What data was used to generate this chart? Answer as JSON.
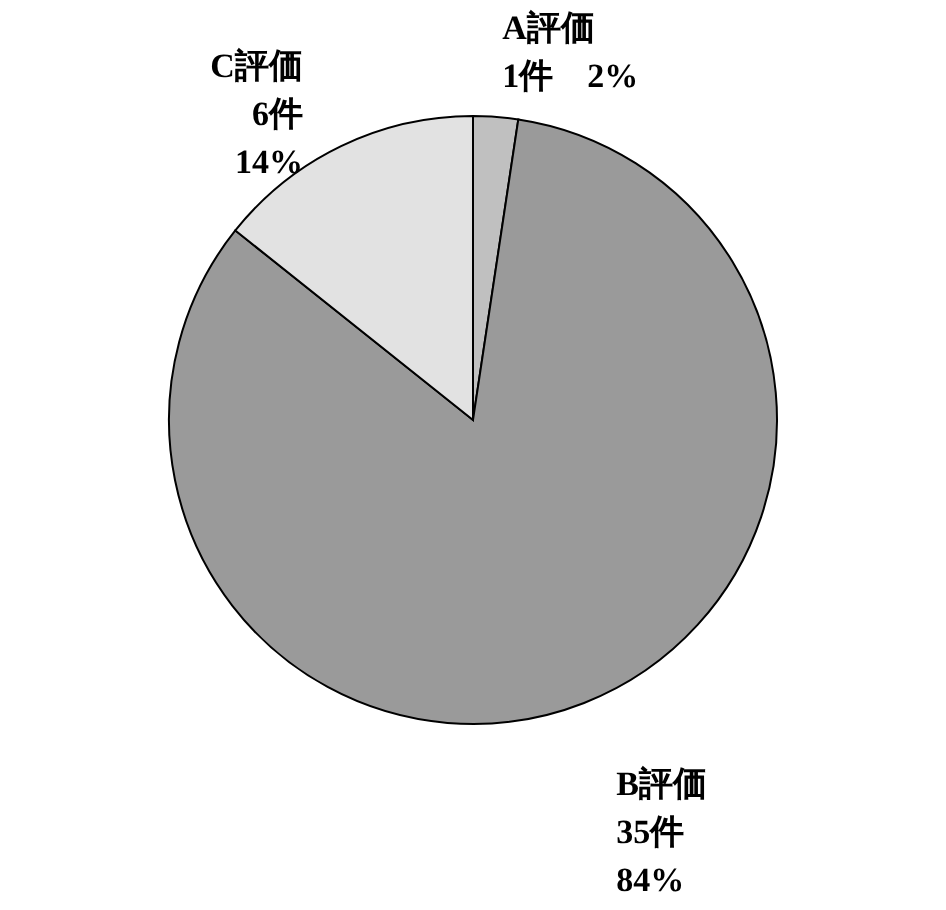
{
  "chart_data": {
    "type": "pie",
    "categories": [
      "A評価",
      "B評価",
      "C評価"
    ],
    "values": [
      1,
      35,
      6
    ],
    "value_labels": [
      "1件　2%",
      "35件\n84%",
      "6件\n14%"
    ],
    "colors": [
      "#c0c0c0",
      "#9a9a9a",
      "#e2e2e2"
    ]
  }
}
